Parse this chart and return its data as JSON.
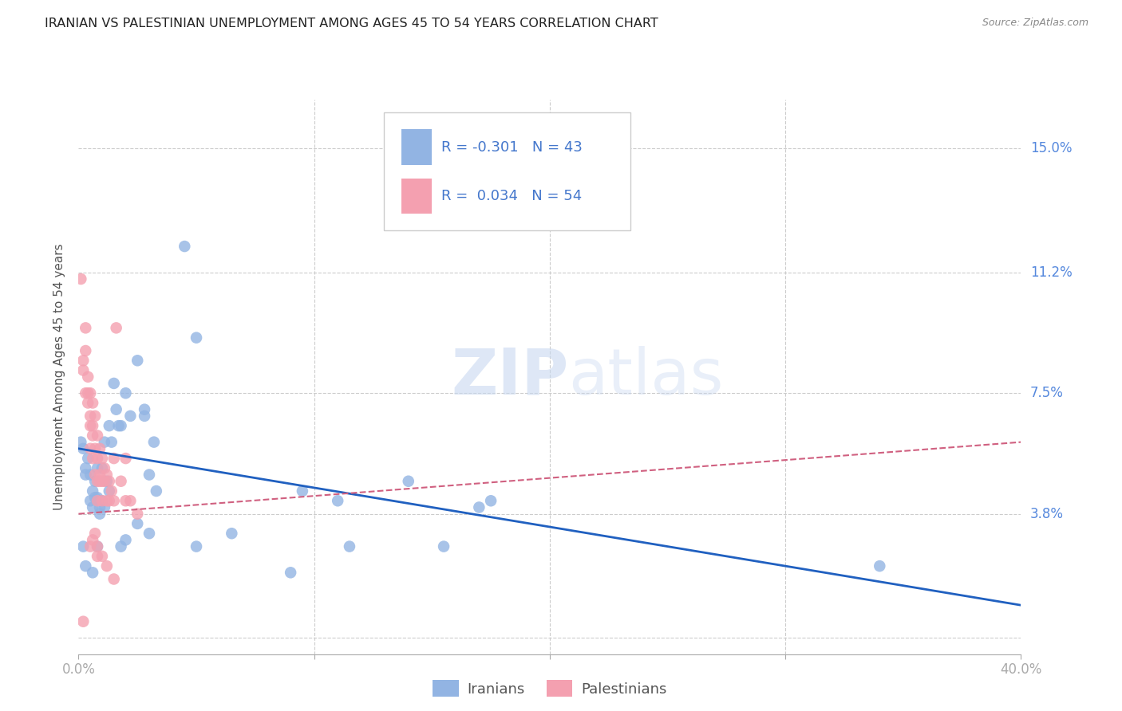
{
  "title": "IRANIAN VS PALESTINIAN UNEMPLOYMENT AMONG AGES 45 TO 54 YEARS CORRELATION CHART",
  "source": "Source: ZipAtlas.com",
  "ylabel": "Unemployment Among Ages 45 to 54 years",
  "xlim": [
    0.0,
    0.4
  ],
  "ylim": [
    -0.005,
    0.165
  ],
  "xticks": [
    0.0,
    0.1,
    0.2,
    0.3,
    0.4
  ],
  "xticklabels": [
    "0.0%",
    "",
    "",
    "",
    "40.0%"
  ],
  "yticks": [
    0.0,
    0.038,
    0.075,
    0.112,
    0.15
  ],
  "yticklabels": [
    "",
    "3.8%",
    "7.5%",
    "11.2%",
    "15.0%"
  ],
  "legend_labels": [
    "Iranians",
    "Palestinians"
  ],
  "iranian_R": "-0.301",
  "iranian_N": "43",
  "palestinian_R": "0.034",
  "palestinian_N": "54",
  "iranian_color": "#92b4e3",
  "palestinian_color": "#f4a0b0",
  "iranian_line_color": "#2060c0",
  "palestinian_line_color": "#d06080",
  "watermark_zip": "ZIP",
  "watermark_atlas": "atlas",
  "background_color": "#ffffff",
  "grid_color": "#cccccc",
  "iranian_points": [
    [
      0.001,
      0.06
    ],
    [
      0.002,
      0.058
    ],
    [
      0.003,
      0.05
    ],
    [
      0.003,
      0.052
    ],
    [
      0.004,
      0.055
    ],
    [
      0.005,
      0.05
    ],
    [
      0.005,
      0.042
    ],
    [
      0.006,
      0.045
    ],
    [
      0.006,
      0.04
    ],
    [
      0.007,
      0.048
    ],
    [
      0.007,
      0.043
    ],
    [
      0.008,
      0.052
    ],
    [
      0.008,
      0.043
    ],
    [
      0.009,
      0.04
    ],
    [
      0.009,
      0.038
    ],
    [
      0.01,
      0.052
    ],
    [
      0.01,
      0.042
    ],
    [
      0.011,
      0.04
    ],
    [
      0.011,
      0.06
    ],
    [
      0.012,
      0.048
    ],
    [
      0.013,
      0.065
    ],
    [
      0.013,
      0.045
    ],
    [
      0.014,
      0.06
    ],
    [
      0.015,
      0.078
    ],
    [
      0.016,
      0.07
    ],
    [
      0.017,
      0.065
    ],
    [
      0.018,
      0.065
    ],
    [
      0.02,
      0.075
    ],
    [
      0.022,
      0.068
    ],
    [
      0.025,
      0.085
    ],
    [
      0.028,
      0.068
    ],
    [
      0.028,
      0.07
    ],
    [
      0.03,
      0.05
    ],
    [
      0.032,
      0.06
    ],
    [
      0.033,
      0.045
    ],
    [
      0.045,
      0.12
    ],
    [
      0.05,
      0.092
    ],
    [
      0.095,
      0.045
    ],
    [
      0.11,
      0.042
    ],
    [
      0.14,
      0.048
    ],
    [
      0.17,
      0.04
    ],
    [
      0.175,
      0.042
    ],
    [
      0.34,
      0.022
    ]
  ],
  "iranian_low_points": [
    [
      0.002,
      0.028
    ],
    [
      0.003,
      0.022
    ],
    [
      0.006,
      0.02
    ],
    [
      0.008,
      0.028
    ],
    [
      0.018,
      0.028
    ],
    [
      0.02,
      0.03
    ],
    [
      0.025,
      0.035
    ],
    [
      0.03,
      0.032
    ],
    [
      0.05,
      0.028
    ],
    [
      0.065,
      0.032
    ],
    [
      0.09,
      0.02
    ],
    [
      0.115,
      0.028
    ],
    [
      0.155,
      0.028
    ]
  ],
  "palestinian_points": [
    [
      0.001,
      0.11
    ],
    [
      0.002,
      0.085
    ],
    [
      0.002,
      0.082
    ],
    [
      0.003,
      0.095
    ],
    [
      0.003,
      0.088
    ],
    [
      0.003,
      0.075
    ],
    [
      0.004,
      0.08
    ],
    [
      0.004,
      0.075
    ],
    [
      0.004,
      0.072
    ],
    [
      0.005,
      0.075
    ],
    [
      0.005,
      0.068
    ],
    [
      0.005,
      0.065
    ],
    [
      0.005,
      0.058
    ],
    [
      0.006,
      0.072
    ],
    [
      0.006,
      0.065
    ],
    [
      0.006,
      0.062
    ],
    [
      0.006,
      0.055
    ],
    [
      0.007,
      0.068
    ],
    [
      0.007,
      0.058
    ],
    [
      0.007,
      0.05
    ],
    [
      0.008,
      0.062
    ],
    [
      0.008,
      0.055
    ],
    [
      0.008,
      0.048
    ],
    [
      0.008,
      0.042
    ],
    [
      0.009,
      0.058
    ],
    [
      0.009,
      0.05
    ],
    [
      0.009,
      0.048
    ],
    [
      0.01,
      0.055
    ],
    [
      0.01,
      0.048
    ],
    [
      0.01,
      0.042
    ],
    [
      0.011,
      0.052
    ],
    [
      0.011,
      0.048
    ],
    [
      0.012,
      0.05
    ],
    [
      0.012,
      0.042
    ],
    [
      0.013,
      0.048
    ],
    [
      0.013,
      0.042
    ],
    [
      0.014,
      0.045
    ],
    [
      0.015,
      0.055
    ],
    [
      0.015,
      0.042
    ],
    [
      0.016,
      0.095
    ],
    [
      0.018,
      0.048
    ],
    [
      0.02,
      0.055
    ],
    [
      0.02,
      0.042
    ],
    [
      0.022,
      0.042
    ],
    [
      0.025,
      0.038
    ]
  ],
  "palestinian_low_points": [
    [
      0.005,
      0.028
    ],
    [
      0.006,
      0.03
    ],
    [
      0.007,
      0.032
    ],
    [
      0.008,
      0.028
    ],
    [
      0.008,
      0.025
    ],
    [
      0.01,
      0.025
    ],
    [
      0.012,
      0.022
    ],
    [
      0.015,
      0.018
    ],
    [
      0.002,
      0.005
    ]
  ],
  "iran_line_x0": 0.0,
  "iran_line_y0": 0.058,
  "iran_line_x1": 0.4,
  "iran_line_y1": 0.01,
  "pal_line_x0": 0.0,
  "pal_line_y0": 0.038,
  "pal_line_x1": 0.4,
  "pal_line_y1": 0.06
}
